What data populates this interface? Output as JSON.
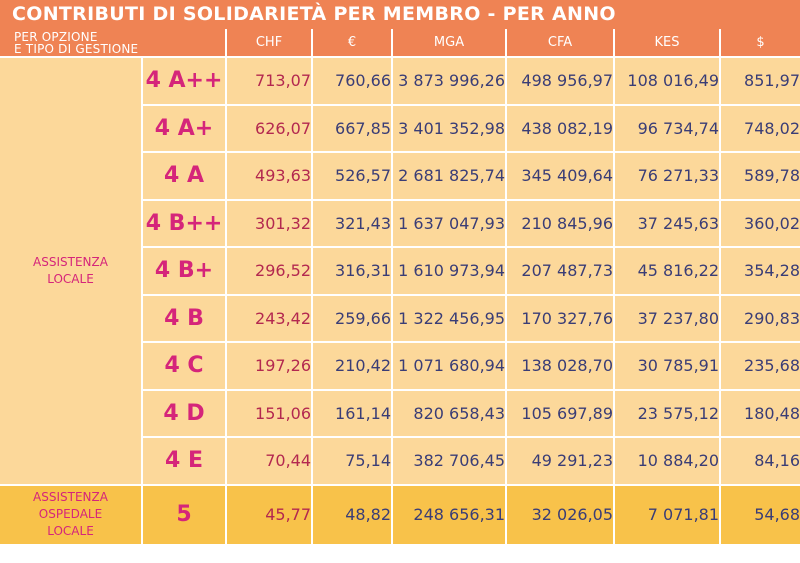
{
  "title": "CONTRIBUTI DI SOLIDARIETÀ PER MEMBRO - PER ANNO",
  "header": {
    "corner_line1": "PER OPZIONE",
    "corner_line2": "E TIPO DI GESTIONE",
    "currencies": [
      "CHF",
      "€",
      "MGA",
      "CFA",
      "KES",
      "$"
    ]
  },
  "groups": {
    "local_line1": "ASSISTENZA",
    "local_line2": "LOCALE",
    "hospital_line1": "ASSISTENZA",
    "hospital_line2": "OSPEDALE",
    "hospital_line3": "LOCALE"
  },
  "rows": [
    {
      "option": "4 A++",
      "values": [
        "713,07",
        "760,66",
        "3 873 996,26",
        "498 956,97",
        "108 016,49",
        "851,97"
      ]
    },
    {
      "option": "4 A+",
      "values": [
        "626,07",
        "667,85",
        "3 401 352,98",
        "438 082,19",
        "96 734,74",
        "748,02"
      ]
    },
    {
      "option": "4 A",
      "values": [
        "493,63",
        "526,57",
        "2 681 825,74",
        "345 409,64",
        "76 271,33",
        "589,78"
      ]
    },
    {
      "option": "4 B++",
      "values": [
        "301,32",
        "321,43",
        "1 637 047,93",
        "210 845,96",
        "37 245,63",
        "360,02"
      ]
    },
    {
      "option": "4 B+",
      "values": [
        "296,52",
        "316,31",
        "1 610 973,94",
        "207 487,73",
        "45 816,22",
        "354,28"
      ]
    },
    {
      "option": "4 B",
      "values": [
        "243,42",
        "259,66",
        "1 322 456,95",
        "170 327,76",
        "37 237,80",
        "290,83"
      ]
    },
    {
      "option": "4 C",
      "values": [
        "197,26",
        "210,42",
        "1 071 680,94",
        "138 028,70",
        "30 785,91",
        "235,68"
      ]
    },
    {
      "option": "4 D",
      "values": [
        "151,06",
        "161,14",
        "820 658,43",
        "105 697,89",
        "23 575,12",
        "180,48"
      ]
    },
    {
      "option": "4 E",
      "values": [
        "70,44",
        "75,14",
        "382 706,45",
        "49 291,23",
        "10 884,20",
        "84,16"
      ]
    },
    {
      "option": "5",
      "values": [
        "45,77",
        "48,82",
        "248 656,31",
        "32 026,05",
        "7 071,81",
        "54,68"
      ]
    }
  ],
  "colors": {
    "header_orange": "#ef8354",
    "row_peach": "#fcd89a",
    "row_yellow": "#f8c24a",
    "magenta": "#d5257a",
    "navy": "#3a3d76"
  }
}
